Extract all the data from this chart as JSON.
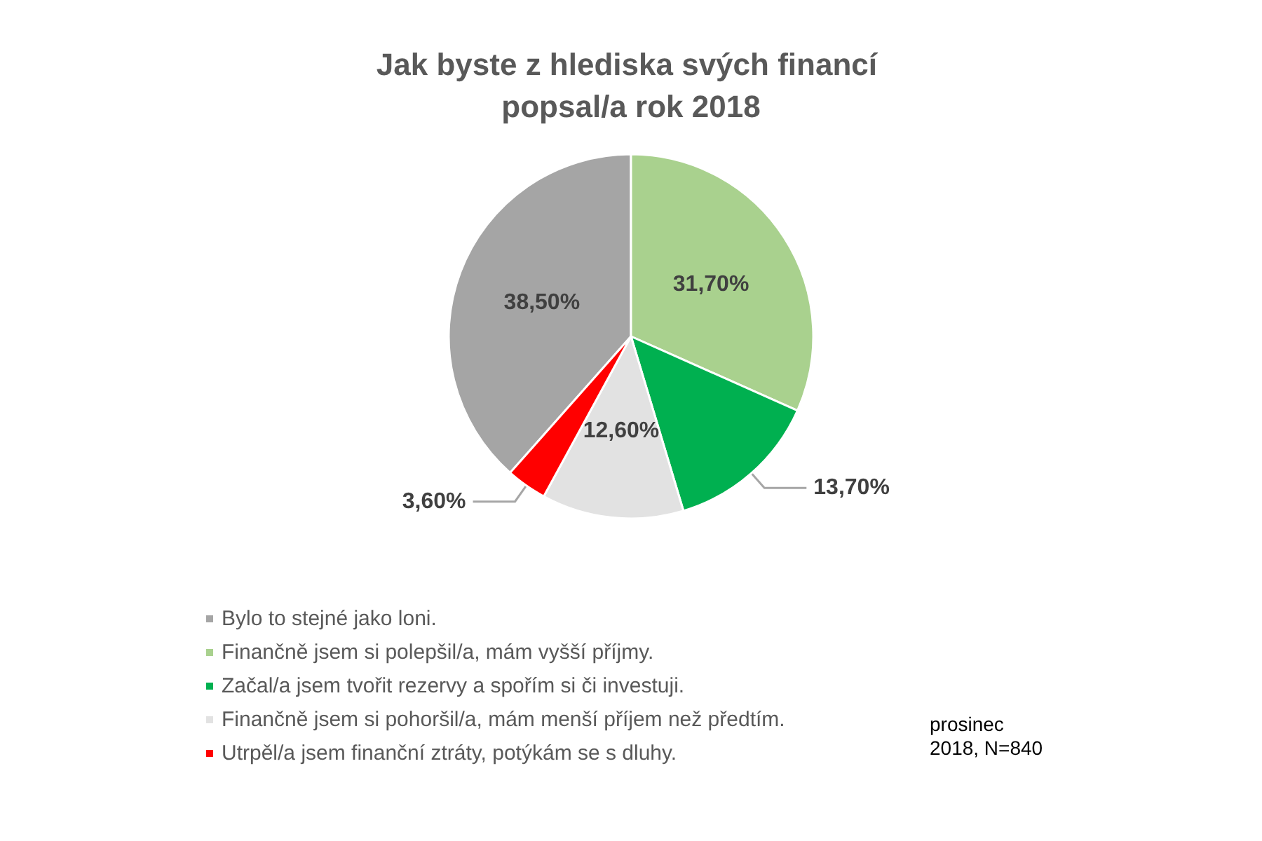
{
  "chart_data": {
    "type": "pie",
    "title": "Jak byste z hlediska svých financí popsal/a rok 2018",
    "categories": [
      "Bylo to stejné jako loni.",
      "Finančně jsem si polepšil/a, mám vyšší příjmy.",
      "Začal/a jsem tvořit rezervy a spořím si či investuji.",
      "Finančně jsem si pohoršil/a, mám menší příjem než předtím.",
      "Utrpěl/a jsem finanční ztráty, potýkám se s dluhy."
    ],
    "values": [
      38.5,
      31.7,
      13.7,
      12.6,
      3.6
    ],
    "colors": [
      "#a5a5a5",
      "#a9d18e",
      "#00b050",
      "#e2e2e2",
      "#ff0000"
    ],
    "value_labels": [
      "38,50%",
      "31,70%",
      "13,70%",
      "12,60%",
      "3,60%"
    ],
    "legend": "bottom left",
    "annotations": [
      "prosinec 2018, N=840"
    ]
  }
}
